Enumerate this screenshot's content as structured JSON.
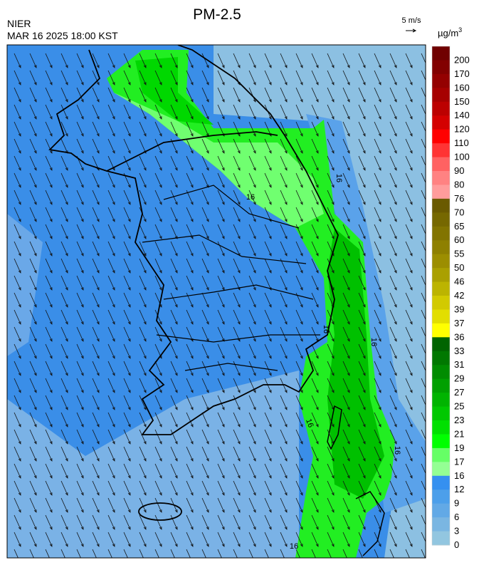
{
  "header": {
    "title": "PM-2.5",
    "agency": "NIER",
    "datetime": "MAR 16 2025 18:00 KST"
  },
  "wind_reference": {
    "label": "5 m/s"
  },
  "legend": {
    "unit": {
      "base": "µg/m",
      "superscript": "3"
    },
    "levels": [
      {
        "label": 200,
        "color": "#700000"
      },
      {
        "label": 170,
        "color": "#820000"
      },
      {
        "label": 160,
        "color": "#940000"
      },
      {
        "label": 150,
        "color": "#a60000"
      },
      {
        "label": 140,
        "color": "#bc0000"
      },
      {
        "label": 120,
        "color": "#d40000"
      },
      {
        "label": 110,
        "color": "#ff0000"
      },
      {
        "label": 100,
        "color": "#ff3434"
      },
      {
        "label": 90,
        "color": "#ff6262"
      },
      {
        "label": 80,
        "color": "#ff8282"
      },
      {
        "label": 76,
        "color": "#ff9c9c"
      },
      {
        "label": 70,
        "color": "#6a5a00"
      },
      {
        "label": 65,
        "color": "#766800"
      },
      {
        "label": 60,
        "color": "#827400"
      },
      {
        "label": 55,
        "color": "#8e8000"
      },
      {
        "label": 50,
        "color": "#9c8e00"
      },
      {
        "label": 46,
        "color": "#aaa000"
      },
      {
        "label": 42,
        "color": "#bcb400"
      },
      {
        "label": 39,
        "color": "#d2ca00"
      },
      {
        "label": 37,
        "color": "#e2de00"
      },
      {
        "label": 36,
        "color": "#ffff00"
      },
      {
        "label": 33,
        "color": "#006400"
      },
      {
        "label": 31,
        "color": "#007800"
      },
      {
        "label": 29,
        "color": "#008c00"
      },
      {
        "label": 27,
        "color": "#00a000"
      },
      {
        "label": 25,
        "color": "#00b400"
      },
      {
        "label": 23,
        "color": "#00c800"
      },
      {
        "label": 21,
        "color": "#00e000"
      },
      {
        "label": 19,
        "color": "#00ff00"
      },
      {
        "label": 17,
        "color": "#66ff66"
      },
      {
        "label": 16,
        "color": "#94ff94"
      },
      {
        "label": 12,
        "color": "#3590f0"
      },
      {
        "label": 9,
        "color": "#4c9fea"
      },
      {
        "label": 6,
        "color": "#62a9e6"
      },
      {
        "label": 3,
        "color": "#7ab6e2"
      },
      {
        "label": 0,
        "color": "#92c6e0"
      }
    ]
  },
  "contour_labels": [
    16,
    16,
    16,
    16,
    16,
    16,
    16
  ]
}
